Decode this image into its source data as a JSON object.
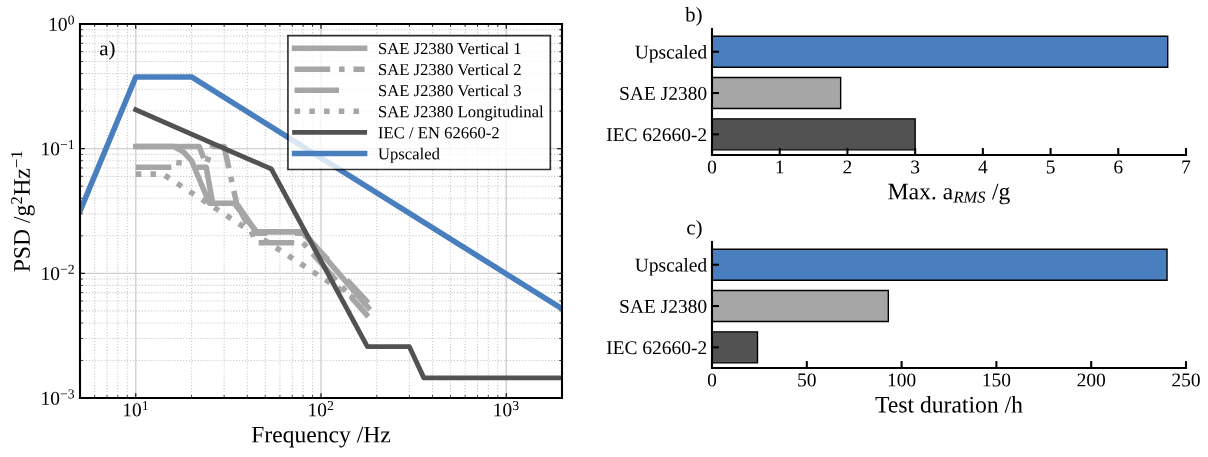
{
  "chart_data": [
    {
      "type": "line",
      "xlabel": "Frequency /Hz",
      "ylabel": "PSD /g$^{2}$Hz$^{−1}$",
      "annotations": [
        "a)"
      ],
      "log": "xy",
      "grid": true,
      "legend": "top right",
      "marker": "none",
      "xlim": [
        5,
        2000
      ],
      "xticks": [
        {
          "value": 10,
          "label": "10$^{1}$"
        },
        {
          "value": 100,
          "label": "10$^{2}$"
        },
        {
          "value": 1000,
          "label": "10$^{3}$"
        }
      ],
      "ylim": [
        0.001,
        1
      ],
      "yticks": [
        {
          "value": 0.001,
          "label": "10$^{−3}$"
        },
        {
          "value": 0.01,
          "label": "10$^{−2}$"
        },
        {
          "value": 0.1,
          "label": "10$^{−1}$"
        },
        {
          "value": 1,
          "label": "10$^{0}$"
        }
      ],
      "series": [
        {
          "name": "SAE J2380 Vertical 1",
          "color": "#a6a6a6",
          "line_style": "solid",
          "x": [
            10,
            16,
            18,
            20,
            25,
            34,
            45,
            80,
            180
          ],
          "values": [
            0.104,
            0.104,
            0.095,
            0.08,
            0.0365,
            0.0365,
            0.0215,
            0.0215,
            0.0053
          ]
        },
        {
          "name": "SAE J2380 Vertical 2",
          "color": "#a6a6a6",
          "line_style": "dashdot",
          "x": [
            10,
            17,
            17.5,
            22,
            24,
            26,
            30,
            35,
            45,
            60,
            80,
            180
          ],
          "values": [
            0.071,
            0.071,
            0.104,
            0.104,
            0.075,
            0.104,
            0.104,
            0.0365,
            0.0176,
            0.0176,
            0.0176,
            0.0045
          ]
        },
        {
          "name": "SAE J2380 Vertical 3",
          "color": "#a6a6a6",
          "line_style": "longdash",
          "x": [
            10,
            17,
            20,
            24,
            26,
            35,
            45,
            80,
            180
          ],
          "values": [
            0.104,
            0.104,
            0.071,
            0.071,
            0.0365,
            0.0365,
            0.021,
            0.021,
            0.0058
          ]
        },
        {
          "name": "SAE J2380 Longitudinal",
          "color": "#a6a6a6",
          "line_style": "dotted",
          "x": [
            10,
            14,
            170
          ],
          "values": [
            0.0625,
            0.0625,
            0.0056
          ]
        },
        {
          "name": "IEC / EN 62660-2",
          "color": "#525252",
          "line_style": "solid",
          "x": [
            10,
            54,
            178,
            300,
            359,
            2000
          ],
          "values": [
            0.205,
            0.0686,
            0.00258,
            0.00258,
            0.00145,
            0.00145
          ]
        },
        {
          "name": "Upscaled",
          "color": "#4a7fbf",
          "line_style": "solid",
          "x": [
            5,
            10,
            20,
            2000
          ],
          "values": [
            0.0316,
            0.376,
            0.376,
            0.0052
          ]
        }
      ]
    },
    {
      "type": "bar",
      "orientation": "horizontal",
      "xlabel": "Max. a$_{RMS}$ /g",
      "annotations": [
        "b)"
      ],
      "categories": [
        "Upscaled",
        "SAE J2380",
        "IEC 62660-2"
      ],
      "values": [
        6.73,
        1.9,
        3.0
      ],
      "colors": [
        "#4a7fbf",
        "#a6a6a6",
        "#525252"
      ],
      "xlim": [
        0,
        7
      ],
      "xticks": [
        0,
        1,
        2,
        3,
        4,
        5,
        6,
        7
      ]
    },
    {
      "type": "bar",
      "orientation": "horizontal",
      "xlabel": "Test duration /h",
      "annotations": [
        "c)"
      ],
      "categories": [
        "Upscaled",
        "SAE J2380",
        "IEC 62660-2"
      ],
      "values": [
        240,
        93,
        24
      ],
      "colors": [
        "#4a7fbf",
        "#a6a6a6",
        "#525252"
      ],
      "xlim": [
        0,
        250
      ],
      "xticks": [
        0,
        50,
        100,
        150,
        200,
        250
      ]
    }
  ]
}
